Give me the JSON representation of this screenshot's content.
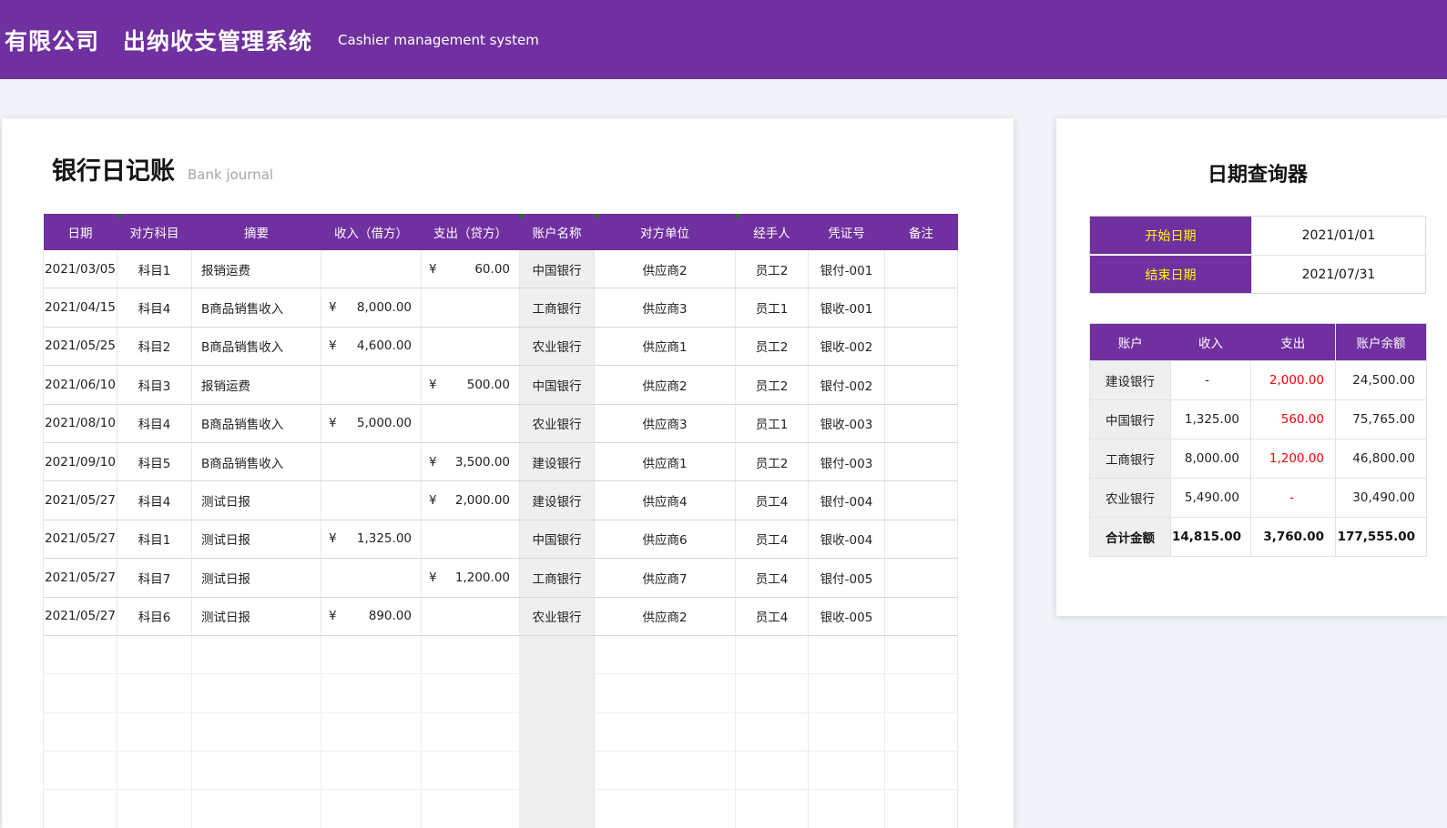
{
  "banner": {
    "company": "有限公司",
    "app_title": "出纳收支管理系统",
    "app_subtitle": "Cashier management system"
  },
  "journal": {
    "title": "银行日记账",
    "subtitle": "Bank journal",
    "currency_symbol": "¥",
    "empty_row_count": 6,
    "columns": [
      {
        "id": "date",
        "label": "日期",
        "comment": false
      },
      {
        "id": "subject",
        "label": "对方科目",
        "comment": true
      },
      {
        "id": "summary",
        "label": "摘要",
        "comment": false
      },
      {
        "id": "income",
        "label": "收入（借方）",
        "comment": false
      },
      {
        "id": "expense",
        "label": "支出（贷方）",
        "comment": false
      },
      {
        "id": "account",
        "label": "账户名称",
        "comment": true
      },
      {
        "id": "counterparty",
        "label": "对方单位",
        "comment": true
      },
      {
        "id": "handler",
        "label": "经手人",
        "comment": true
      },
      {
        "id": "voucher",
        "label": "凭证号",
        "comment": false
      },
      {
        "id": "note",
        "label": "备注",
        "comment": false
      }
    ],
    "rows": [
      {
        "date": "2021/03/05",
        "subject": "科目1",
        "summary": "报销运费",
        "income": "",
        "expense": "60.00",
        "account": "中国银行",
        "counterparty": "供应商2",
        "handler": "员工2",
        "voucher": "银付-001",
        "note": ""
      },
      {
        "date": "2021/04/15",
        "subject": "科目4",
        "summary": "B商品销售收入",
        "income": "8,000.00",
        "expense": "",
        "account": "工商银行",
        "counterparty": "供应商3",
        "handler": "员工1",
        "voucher": "银收-001",
        "note": ""
      },
      {
        "date": "2021/05/25",
        "subject": "科目2",
        "summary": "B商品销售收入",
        "income": "4,600.00",
        "expense": "",
        "account": "农业银行",
        "counterparty": "供应商1",
        "handler": "员工2",
        "voucher": "银收-002",
        "note": ""
      },
      {
        "date": "2021/06/10",
        "subject": "科目3",
        "summary": "报销运费",
        "income": "",
        "expense": "500.00",
        "account": "中国银行",
        "counterparty": "供应商2",
        "handler": "员工2",
        "voucher": "银付-002",
        "note": ""
      },
      {
        "date": "2021/08/10",
        "subject": "科目4",
        "summary": "B商品销售收入",
        "income": "5,000.00",
        "expense": "",
        "account": "农业银行",
        "counterparty": "供应商3",
        "handler": "员工1",
        "voucher": "银收-003",
        "note": ""
      },
      {
        "date": "2021/09/10",
        "subject": "科目5",
        "summary": "B商品销售收入",
        "income": "",
        "expense": "3,500.00",
        "account": "建设银行",
        "counterparty": "供应商1",
        "handler": "员工2",
        "voucher": "银付-003",
        "note": ""
      },
      {
        "date": "2021/05/27",
        "subject": "科目4",
        "summary": "测试日报",
        "income": "",
        "expense": "2,000.00",
        "account": "建设银行",
        "counterparty": "供应商4",
        "handler": "员工4",
        "voucher": "银付-004",
        "note": ""
      },
      {
        "date": "2021/05/27",
        "subject": "科目1",
        "summary": "测试日报",
        "income": "1,325.00",
        "expense": "",
        "account": "中国银行",
        "counterparty": "供应商6",
        "handler": "员工4",
        "voucher": "银收-004",
        "note": ""
      },
      {
        "date": "2021/05/27",
        "subject": "科目7",
        "summary": "测试日报",
        "income": "",
        "expense": "1,200.00",
        "account": "工商银行",
        "counterparty": "供应商7",
        "handler": "员工4",
        "voucher": "银付-005",
        "note": ""
      },
      {
        "date": "2021/05/27",
        "subject": "科目6",
        "summary": "测试日报",
        "income": "890.00",
        "expense": "",
        "account": "农业银行",
        "counterparty": "供应商2",
        "handler": "员工4",
        "voucher": "银收-005",
        "note": ""
      }
    ]
  },
  "query": {
    "title": "日期查询器",
    "start_label": "开始日期",
    "start_value": "2021/01/01",
    "end_label": "结束日期",
    "end_value": "2021/07/31"
  },
  "summary": {
    "columns": [
      "账户",
      "收入",
      "支出",
      "账户余额"
    ],
    "rows": [
      {
        "account": "建设银行",
        "income": "-",
        "expense": "2,000.00",
        "balance": "24,500.00",
        "is_total": false
      },
      {
        "account": "中国银行",
        "income": "1,325.00",
        "expense": "560.00",
        "balance": "75,765.00",
        "is_total": false
      },
      {
        "account": "工商银行",
        "income": "8,000.00",
        "expense": "1,200.00",
        "balance": "46,800.00",
        "is_total": false
      },
      {
        "account": "农业银行",
        "income": "5,490.00",
        "expense": "-",
        "balance": "30,490.00",
        "is_total": false
      },
      {
        "account": "合计金额",
        "income": "14,815.00",
        "expense": "3,760.00",
        "balance": "177,555.00",
        "is_total": true
      }
    ]
  },
  "colors": {
    "accent_purple": "#7030a0",
    "label_yellow": "#ffff00",
    "negative_red": "#ff0000",
    "account_column_bg": "#efefef",
    "page_bg": "#f1f3f8"
  }
}
